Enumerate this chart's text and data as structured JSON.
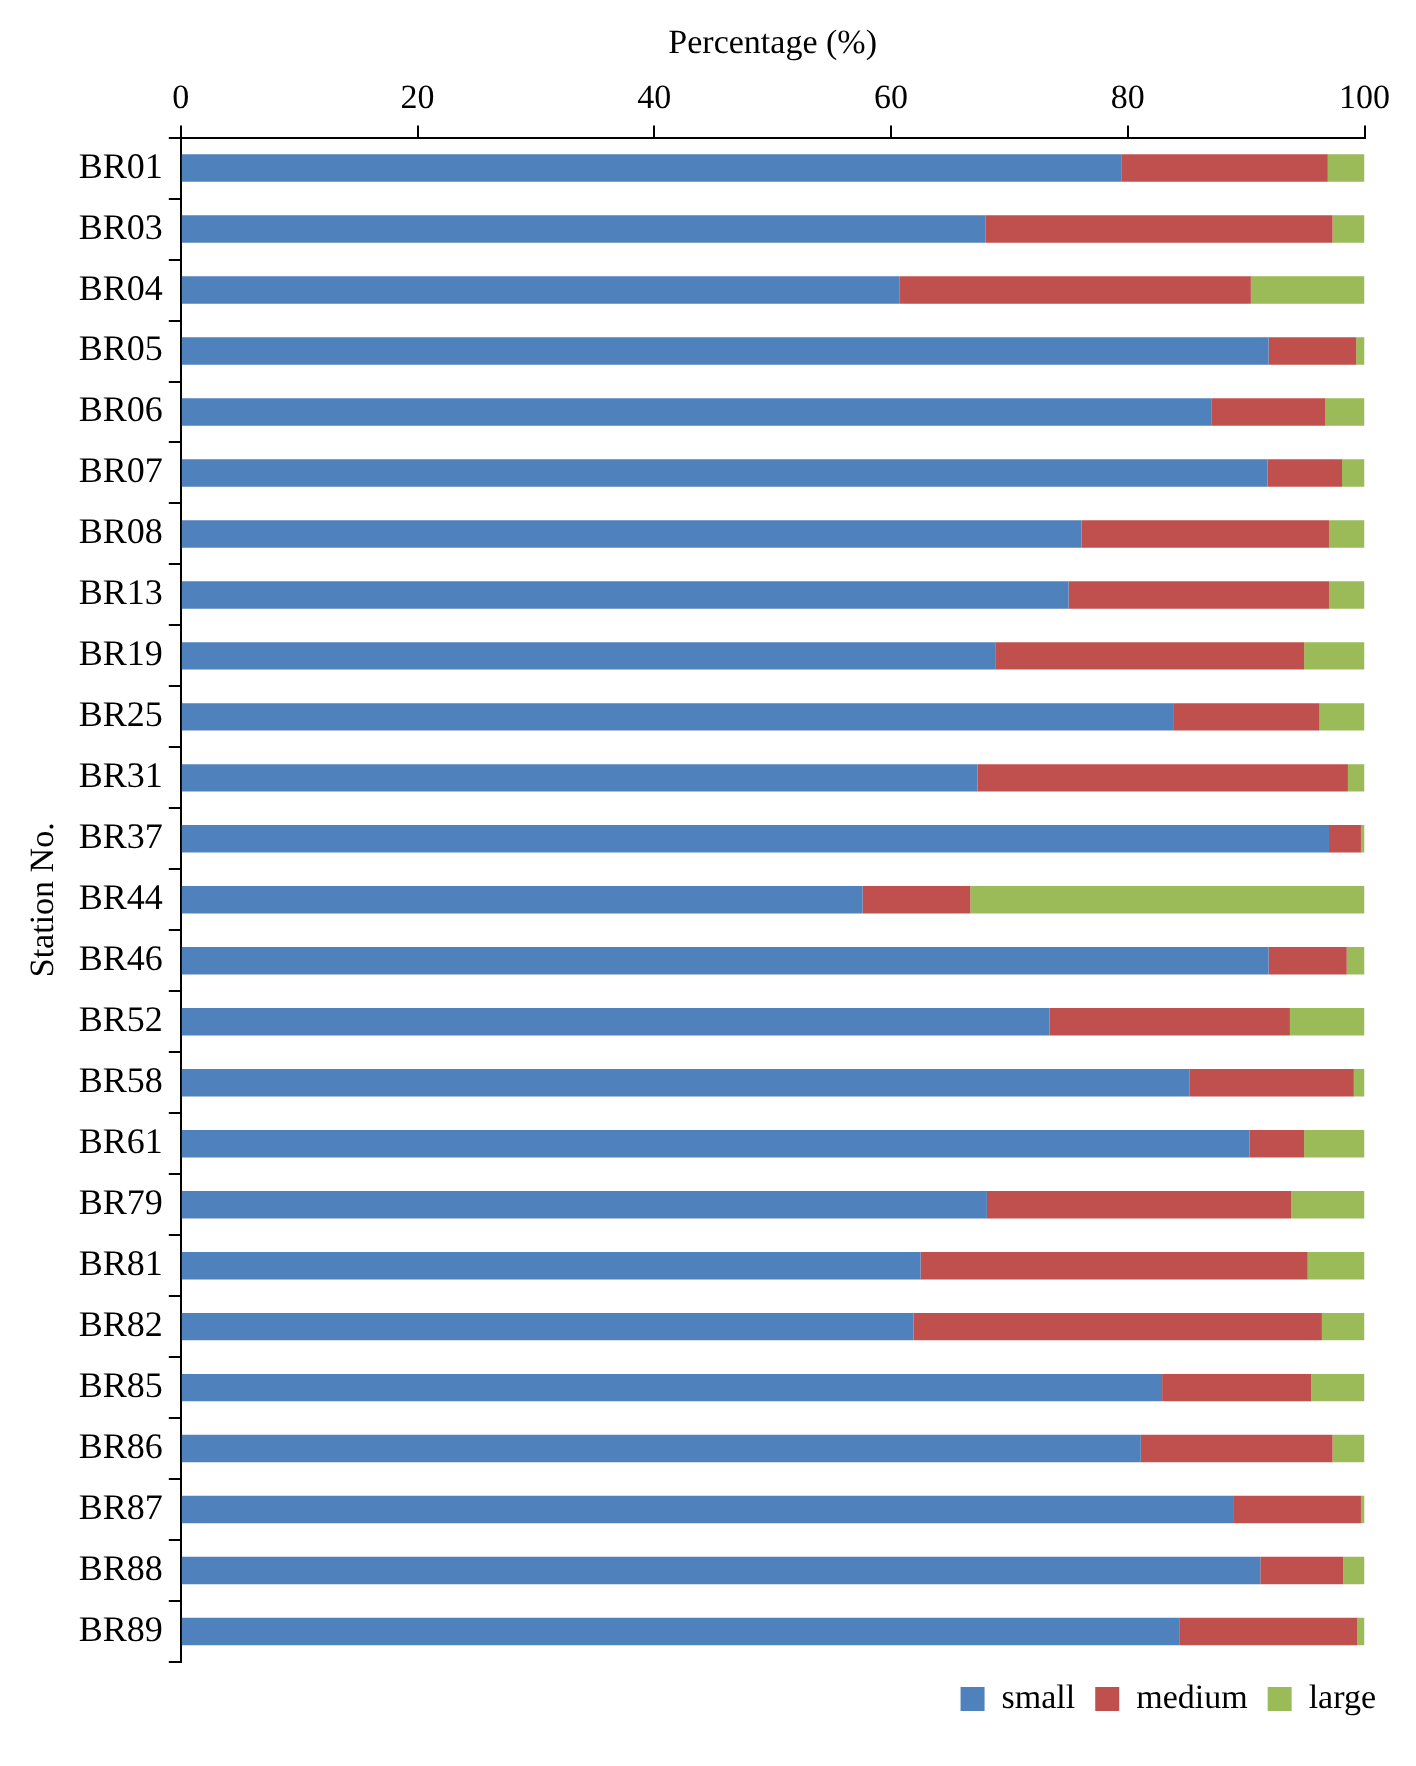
{
  "chart_data": {
    "type": "bar",
    "orientation": "horizontal",
    "stacked": true,
    "xlabel": "Percentage (%)",
    "ylabel": "Station No.",
    "categories": [
      "BR01",
      "BR03",
      "BR04",
      "BR05",
      "BR06",
      "BR07",
      "BR08",
      "BR13",
      "BR19",
      "BR25",
      "BR31",
      "BR37",
      "BR44",
      "BR46",
      "BR52",
      "BR58",
      "BR61",
      "BR79",
      "BR81",
      "BR82",
      "BR85",
      "BR86",
      "BR87",
      "BR88",
      "BR89"
    ],
    "series": [
      {
        "name": "small",
        "color": "#4f81bd",
        "values": [
          79.5,
          68.0,
          60.7,
          91.9,
          87.1,
          91.8,
          76.1,
          75.0,
          68.8,
          83.9,
          67.3,
          97.0,
          57.6,
          91.9,
          73.4,
          85.2,
          90.3,
          68.1,
          62.5,
          61.9,
          82.9,
          81.1,
          88.9,
          91.2,
          84.4
        ]
      },
      {
        "name": "medium",
        "color": "#c0504d",
        "values": [
          17.4,
          29.3,
          29.7,
          7.4,
          9.6,
          6.3,
          20.9,
          22.0,
          26.1,
          12.3,
          31.3,
          2.7,
          9.1,
          6.6,
          20.3,
          13.9,
          4.6,
          25.7,
          32.7,
          34.5,
          12.6,
          16.2,
          10.8,
          7.0,
          15.0
        ]
      },
      {
        "name": "large",
        "color": "#9bbb59",
        "values": [
          3.1,
          2.7,
          9.6,
          0.7,
          3.3,
          1.9,
          3.0,
          3.0,
          5.1,
          3.8,
          1.4,
          0.3,
          33.3,
          1.5,
          6.3,
          0.9,
          5.1,
          6.2,
          4.8,
          3.6,
          4.5,
          2.7,
          0.3,
          1.8,
          0.6
        ]
      }
    ],
    "xlim": [
      0,
      100
    ],
    "xticks": [
      0,
      20,
      40,
      60,
      80,
      100
    ],
    "grid": false,
    "legend": "bottom right"
  }
}
